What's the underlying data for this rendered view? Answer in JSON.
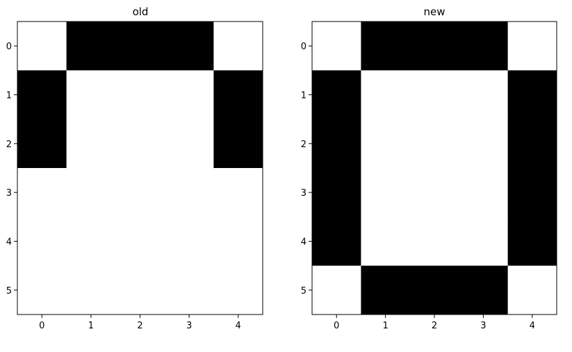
{
  "figure": {
    "background": "#ffffff"
  },
  "chart_data": [
    {
      "type": "heatmap",
      "title": "old",
      "xlabel": "",
      "ylabel": "",
      "x_ticks": [
        "0",
        "1",
        "2",
        "3",
        "4"
      ],
      "y_ticks": [
        "0",
        "1",
        "2",
        "3",
        "4",
        "5"
      ],
      "rows": 6,
      "cols": 5,
      "colormap": {
        "0": "#ffffff",
        "1": "#000000"
      },
      "grid": false,
      "values": [
        [
          0,
          1,
          1,
          1,
          0
        ],
        [
          1,
          0,
          0,
          0,
          1
        ],
        [
          1,
          0,
          0,
          0,
          1
        ],
        [
          0,
          0,
          0,
          0,
          0
        ],
        [
          0,
          0,
          0,
          0,
          0
        ],
        [
          0,
          0,
          0,
          0,
          0
        ]
      ]
    },
    {
      "type": "heatmap",
      "title": "new",
      "xlabel": "",
      "ylabel": "",
      "x_ticks": [
        "0",
        "1",
        "2",
        "3",
        "4"
      ],
      "y_ticks": [
        "0",
        "1",
        "2",
        "3",
        "4",
        "5"
      ],
      "rows": 6,
      "cols": 5,
      "colormap": {
        "0": "#ffffff",
        "1": "#000000"
      },
      "grid": false,
      "values": [
        [
          0,
          1,
          1,
          1,
          0
        ],
        [
          1,
          0,
          0,
          0,
          1
        ],
        [
          1,
          0,
          0,
          0,
          1
        ],
        [
          1,
          0,
          0,
          0,
          1
        ],
        [
          1,
          0,
          0,
          0,
          1
        ],
        [
          0,
          1,
          1,
          1,
          0
        ]
      ]
    }
  ]
}
